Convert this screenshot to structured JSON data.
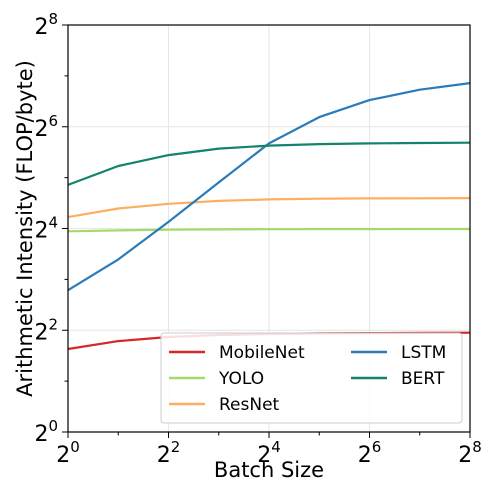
{
  "chart_data": {
    "type": "line",
    "title": "",
    "xlabel": "Batch Size",
    "ylabel": "Arithmetic Intensity (FLOP/byte)",
    "x_scale": "log2",
    "y_scale": "log2",
    "x_ticks": [
      {
        "base": "2",
        "exp": "0",
        "value": 1
      },
      {
        "base": "2",
        "exp": "2",
        "value": 4
      },
      {
        "base": "2",
        "exp": "4",
        "value": 16
      },
      {
        "base": "2",
        "exp": "6",
        "value": 64
      },
      {
        "base": "2",
        "exp": "8",
        "value": 256
      }
    ],
    "y_ticks": [
      {
        "base": "2",
        "exp": "0",
        "value": 1
      },
      {
        "base": "2",
        "exp": "2",
        "value": 4
      },
      {
        "base": "2",
        "exp": "4",
        "value": 16
      },
      {
        "base": "2",
        "exp": "6",
        "value": 64
      },
      {
        "base": "2",
        "exp": "8",
        "value": 256
      }
    ],
    "xlim": [
      1,
      256
    ],
    "ylim": [
      1,
      256
    ],
    "grid": true,
    "legend_position": "lower-right",
    "x": [
      1,
      2,
      4,
      8,
      16,
      32,
      64,
      128,
      256
    ],
    "series": [
      {
        "name": "MobileNet",
        "color": "#d62728",
        "values": [
          3.1,
          3.45,
          3.65,
          3.75,
          3.8,
          3.83,
          3.85,
          3.86,
          3.87
        ]
      },
      {
        "name": "YOLO",
        "color": "#a6d96a",
        "values": [
          15.4,
          15.6,
          15.75,
          15.8,
          15.85,
          15.87,
          15.88,
          15.9,
          15.9
        ]
      },
      {
        "name": "ResNet",
        "color": "#fdae61",
        "values": [
          18.7,
          21.0,
          22.4,
          23.3,
          23.8,
          24.0,
          24.1,
          24.15,
          24.2
        ]
      },
      {
        "name": "LSTM",
        "color": "#2b7bba",
        "values": [
          6.9,
          10.5,
          17.5,
          30.0,
          51.0,
          73.0,
          92.0,
          106.0,
          116.0
        ]
      },
      {
        "name": "BERT",
        "color": "#13836c",
        "values": [
          29.0,
          37.5,
          43.5,
          47.5,
          49.5,
          50.5,
          51.0,
          51.3,
          51.5
        ]
      }
    ]
  }
}
